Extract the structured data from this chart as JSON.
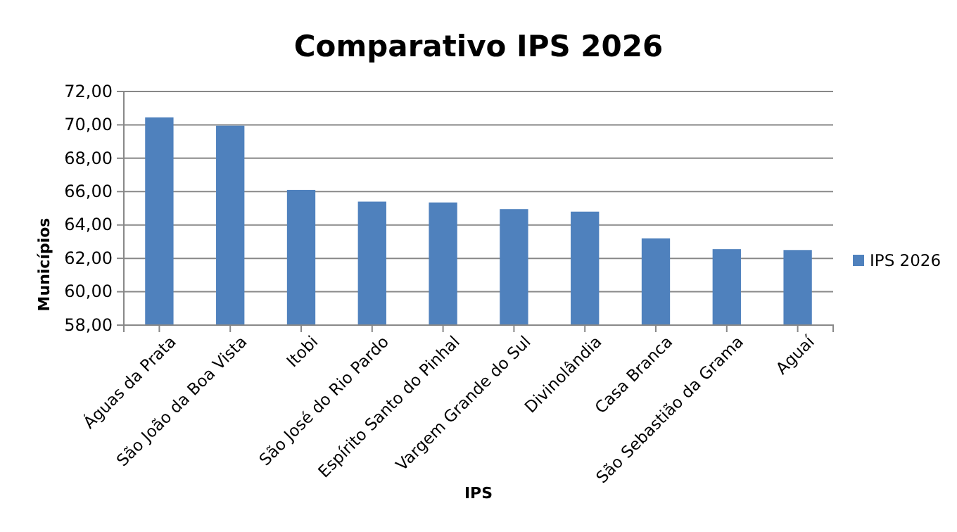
{
  "chart_data": {
    "type": "bar",
    "title": "Comparativo IPS 2026",
    "xlabel": "IPS",
    "ylabel": "Municípios",
    "categories": [
      "Águas da Prata",
      "São João da Boa Vista",
      "Itobi",
      "São José do Rio Pardo",
      "Espírito Santo do Pinhal",
      "Vargem Grande do Sul",
      "Divinolândia",
      "Casa Branca",
      "São Sebastião da Grama",
      "Aguaí"
    ],
    "series": [
      {
        "name": "IPS 2026",
        "color": "#4f81bd",
        "values": [
          70.45,
          69.95,
          66.1,
          65.4,
          65.35,
          64.95,
          64.8,
          63.2,
          62.55,
          62.5
        ]
      }
    ],
    "ylim": [
      58,
      72
    ],
    "yticks": [
      {
        "value": 58,
        "label": "58,00"
      },
      {
        "value": 60,
        "label": "60,00"
      },
      {
        "value": 62,
        "label": "62,00"
      },
      {
        "value": 64,
        "label": "64,00"
      },
      {
        "value": 66,
        "label": "66,00"
      },
      {
        "value": 68,
        "label": "68,00"
      },
      {
        "value": 70,
        "label": "70,00"
      },
      {
        "value": 72,
        "label": "72,00"
      }
    ],
    "grid": "y",
    "legend": "right"
  }
}
